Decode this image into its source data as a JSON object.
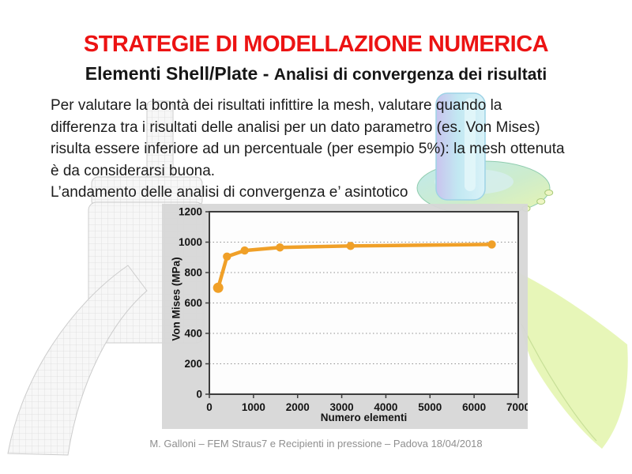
{
  "slide": {
    "title": "STRATEGIE DI MODELLAZIONE NUMERICA",
    "subtitle_main": "Elementi Shell/Plate - ",
    "subtitle_sub": "Analisi di convergenza dei risultati",
    "body_lines": [
      "Per valutare la bontà dei risultati infittire la mesh, valutare quando la",
      "differenza tra i risultati delle analisi per un dato parametro (es. Von Mises)",
      "risulta essere inferiore ad un percentuale (per esempio 5%): la mesh ottenuta",
      "è da considerarsi buona.",
      "L’andamento delle analisi di convergenza e’ asintotico"
    ],
    "footer": "M. Galloni – FEM Straus7 e Recipienti in pressione – Padova 18/04/2018"
  },
  "chart_data": {
    "type": "line",
    "title": "",
    "xlabel": "Numero elementi",
    "ylabel": "Von Mises (MPa)",
    "x": [
      200,
      400,
      800,
      1600,
      3200,
      6400
    ],
    "y": [
      700,
      905,
      945,
      965,
      975,
      985
    ],
    "xlim": [
      0,
      7000
    ],
    "ylim": [
      0,
      1200
    ],
    "x_ticks": [
      0,
      1000,
      2000,
      3000,
      4000,
      5000,
      6000,
      7000
    ],
    "y_ticks": [
      0,
      200,
      400,
      600,
      800,
      1000,
      1200
    ],
    "grid": "horizontal-dotted",
    "legend": "none",
    "line_color": "#F0A028",
    "marker": "circle"
  },
  "colors": {
    "title_red": "#EC1313",
    "accent_orange": "#F0A028",
    "footer_gray": "#8F8F8F",
    "panel_gray": "#D7D7D7"
  }
}
